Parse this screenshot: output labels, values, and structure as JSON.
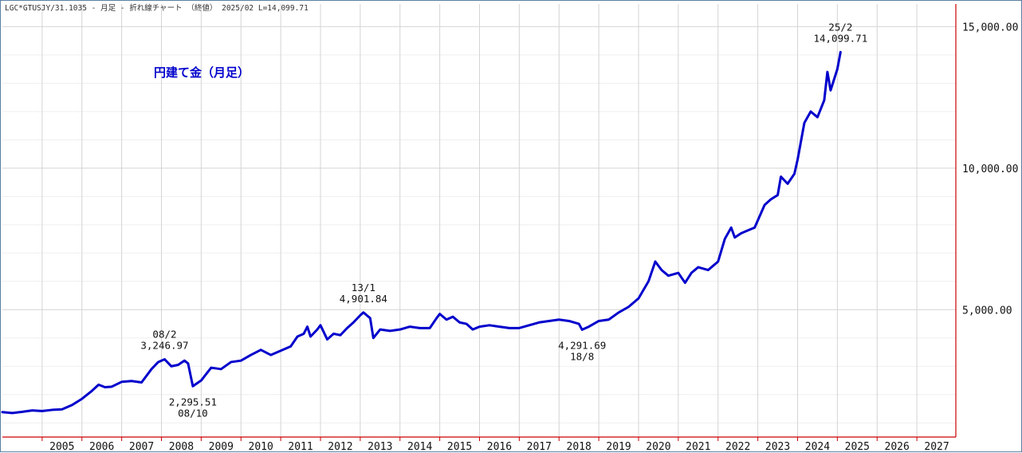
{
  "header": {
    "text": "LGC*GTUSJY/31.1035 - 月足 - 折れ線チャート （終値） 2025/02 L=14,099.71"
  },
  "chart_data": {
    "type": "line",
    "title": "円建て金（月足）",
    "xlabel": "",
    "ylabel": "",
    "xlim": [
      2004.0,
      2027.98
    ],
    "ylim": [
      500,
      15800
    ],
    "x_ticks": [
      "2005",
      "2006",
      "2007",
      "2008",
      "2009",
      "2010",
      "2011",
      "2012",
      "2013",
      "2014",
      "2015",
      "2016",
      "2017",
      "2018",
      "2019",
      "2020",
      "2021",
      "2022",
      "2023",
      "2024",
      "2025",
      "2026",
      "2027"
    ],
    "y_ticks": [
      {
        "value": 5000,
        "label": "5,000.00"
      },
      {
        "value": 10000,
        "label": "10,000.00"
      },
      {
        "value": 15000,
        "label": "15,000.00"
      }
    ],
    "grid": true,
    "line_color": "#0000cc",
    "title_color": "#0000cc",
    "axis_color": "#cc0000",
    "series": [
      {
        "points": [
          [
            2004.0,
            1380
          ],
          [
            2004.25,
            1350
          ],
          [
            2004.5,
            1390
          ],
          [
            2004.75,
            1440
          ],
          [
            2005.0,
            1420
          ],
          [
            2005.25,
            1460
          ],
          [
            2005.5,
            1480
          ],
          [
            2005.75,
            1630
          ],
          [
            2006.0,
            1850
          ],
          [
            2006.25,
            2130
          ],
          [
            2006.42,
            2350
          ],
          [
            2006.58,
            2260
          ],
          [
            2006.75,
            2280
          ],
          [
            2007.0,
            2450
          ],
          [
            2007.25,
            2480
          ],
          [
            2007.5,
            2430
          ],
          [
            2007.75,
            2900
          ],
          [
            2007.92,
            3150
          ],
          [
            2008.08,
            3247
          ],
          [
            2008.25,
            3000
          ],
          [
            2008.42,
            3050
          ],
          [
            2008.58,
            3200
          ],
          [
            2008.67,
            3100
          ],
          [
            2008.79,
            2296
          ],
          [
            2009.0,
            2500
          ],
          [
            2009.25,
            2950
          ],
          [
            2009.5,
            2900
          ],
          [
            2009.75,
            3150
          ],
          [
            2010.0,
            3200
          ],
          [
            2010.25,
            3400
          ],
          [
            2010.5,
            3580
          ],
          [
            2010.75,
            3400
          ],
          [
            2011.0,
            3550
          ],
          [
            2011.25,
            3700
          ],
          [
            2011.42,
            4050
          ],
          [
            2011.58,
            4150
          ],
          [
            2011.67,
            4400
          ],
          [
            2011.75,
            4050
          ],
          [
            2011.92,
            4300
          ],
          [
            2012.0,
            4450
          ],
          [
            2012.17,
            3950
          ],
          [
            2012.33,
            4150
          ],
          [
            2012.5,
            4100
          ],
          [
            2012.67,
            4350
          ],
          [
            2012.83,
            4550
          ],
          [
            2013.0,
            4800
          ],
          [
            2013.08,
            4902
          ],
          [
            2013.25,
            4700
          ],
          [
            2013.33,
            4000
          ],
          [
            2013.5,
            4300
          ],
          [
            2013.75,
            4250
          ],
          [
            2014.0,
            4300
          ],
          [
            2014.25,
            4400
          ],
          [
            2014.5,
            4350
          ],
          [
            2014.75,
            4350
          ],
          [
            2014.92,
            4700
          ],
          [
            2015.0,
            4850
          ],
          [
            2015.17,
            4650
          ],
          [
            2015.33,
            4750
          ],
          [
            2015.5,
            4550
          ],
          [
            2015.67,
            4500
          ],
          [
            2015.83,
            4300
          ],
          [
            2016.0,
            4400
          ],
          [
            2016.25,
            4450
          ],
          [
            2016.5,
            4400
          ],
          [
            2016.75,
            4350
          ],
          [
            2017.0,
            4350
          ],
          [
            2017.25,
            4450
          ],
          [
            2017.5,
            4550
          ],
          [
            2017.75,
            4600
          ],
          [
            2018.0,
            4650
          ],
          [
            2018.25,
            4600
          ],
          [
            2018.5,
            4500
          ],
          [
            2018.58,
            4292
          ],
          [
            2018.75,
            4400
          ],
          [
            2019.0,
            4600
          ],
          [
            2019.25,
            4650
          ],
          [
            2019.5,
            4900
          ],
          [
            2019.75,
            5100
          ],
          [
            2020.0,
            5400
          ],
          [
            2020.25,
            6000
          ],
          [
            2020.42,
            6700
          ],
          [
            2020.58,
            6400
          ],
          [
            2020.75,
            6200
          ],
          [
            2021.0,
            6300
          ],
          [
            2021.17,
            5950
          ],
          [
            2021.33,
            6300
          ],
          [
            2021.5,
            6500
          ],
          [
            2021.75,
            6400
          ],
          [
            2022.0,
            6700
          ],
          [
            2022.17,
            7500
          ],
          [
            2022.33,
            7900
          ],
          [
            2022.42,
            7550
          ],
          [
            2022.58,
            7700
          ],
          [
            2022.75,
            7800
          ],
          [
            2022.92,
            7900
          ],
          [
            2023.17,
            8700
          ],
          [
            2023.33,
            8900
          ],
          [
            2023.5,
            9050
          ],
          [
            2023.58,
            9700
          ],
          [
            2023.75,
            9450
          ],
          [
            2023.92,
            9800
          ],
          [
            2024.0,
            10300
          ],
          [
            2024.17,
            11600
          ],
          [
            2024.33,
            12000
          ],
          [
            2024.5,
            11800
          ],
          [
            2024.67,
            12400
          ],
          [
            2024.75,
            13400
          ],
          [
            2024.83,
            12750
          ],
          [
            2025.0,
            13500
          ],
          [
            2025.08,
            14100
          ]
        ]
      }
    ],
    "annotations": [
      {
        "id": "high-2008",
        "line1": "08/2",
        "line2": "3,246.97",
        "x": 2008.08,
        "y": 3247,
        "position": "above"
      },
      {
        "id": "low-2008",
        "line1": "2,295.51",
        "line2": "08/10",
        "x": 2008.79,
        "y": 2296,
        "position": "below"
      },
      {
        "id": "high-2013",
        "line1": "13/1",
        "line2": "4,901.84",
        "x": 2013.08,
        "y": 4902,
        "position": "above"
      },
      {
        "id": "low-2018",
        "line1": "4,291.69",
        "line2": "18/8",
        "x": 2018.58,
        "y": 4292,
        "position": "below"
      },
      {
        "id": "last-2025",
        "line1": "25/2",
        "line2": "14,099.71",
        "x": 2025.08,
        "y": 14100,
        "position": "above"
      }
    ]
  }
}
